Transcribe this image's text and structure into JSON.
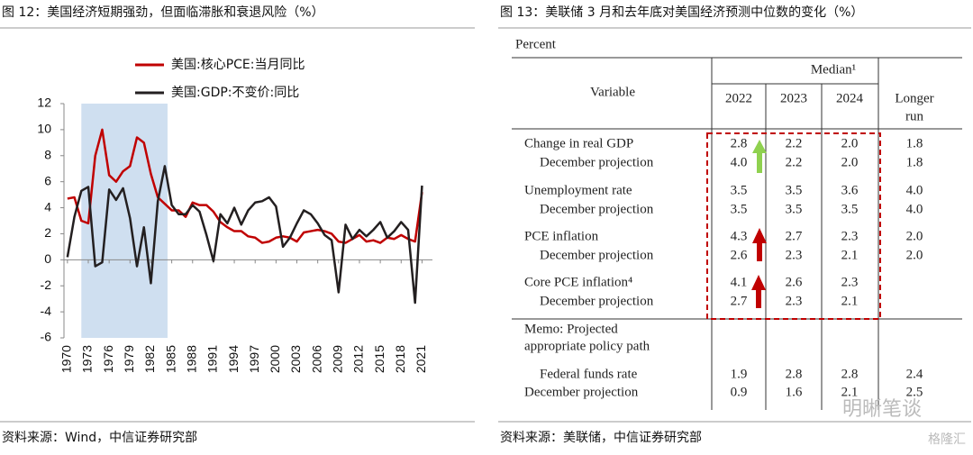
{
  "chart_data": {
    "type": "line",
    "title": "图 12：美国经济短期强劲，但面临滞胀和衰退风险（%）",
    "source": "资料来源：Wind，中信证券研究部",
    "x": [
      1970,
      1971,
      1972,
      1973,
      1974,
      1975,
      1976,
      1977,
      1978,
      1979,
      1980,
      1981,
      1982,
      1983,
      1984,
      1985,
      1986,
      1987,
      1988,
      1989,
      1990,
      1991,
      1992,
      1993,
      1994,
      1995,
      1996,
      1997,
      1998,
      1999,
      2000,
      2001,
      2002,
      2003,
      2004,
      2005,
      2006,
      2007,
      2008,
      2009,
      2010,
      2011,
      2012,
      2013,
      2014,
      2015,
      2016,
      2017,
      2018,
      2019,
      2020,
      2021
    ],
    "series": [
      {
        "name": "美国:核心PCE:当月同比",
        "color": "#c00000",
        "values": [
          4.7,
          4.8,
          3.0,
          2.8,
          8.0,
          10.0,
          6.5,
          6.0,
          6.8,
          7.2,
          9.4,
          9.0,
          6.6,
          4.8,
          4.3,
          3.8,
          3.8,
          3.3,
          4.4,
          4.2,
          4.2,
          3.7,
          2.9,
          2.5,
          2.2,
          2.2,
          1.8,
          1.7,
          1.3,
          1.4,
          1.7,
          1.8,
          1.7,
          1.4,
          2.1,
          2.2,
          2.3,
          2.2,
          2.0,
          1.4,
          1.3,
          1.6,
          1.9,
          1.4,
          1.5,
          1.3,
          1.7,
          1.6,
          1.9,
          1.6,
          1.4,
          5.2
        ]
      },
      {
        "name": "美国:GDP:不变价:同比",
        "color": "#231f20",
        "values": [
          0.2,
          3.3,
          5.3,
          5.6,
          -0.5,
          -0.2,
          5.4,
          4.6,
          5.5,
          3.2,
          -0.5,
          2.5,
          -1.8,
          4.5,
          7.2,
          4.2,
          3.5,
          3.5,
          4.2,
          3.7,
          1.9,
          -0.1,
          3.5,
          2.8,
          4.0,
          2.7,
          3.8,
          4.4,
          4.5,
          4.8,
          4.1,
          1.0,
          1.7,
          2.8,
          3.8,
          3.5,
          2.8,
          1.9,
          1.5,
          -2.5,
          2.7,
          1.6,
          2.3,
          1.8,
          2.3,
          2.9,
          1.7,
          2.2,
          2.9,
          2.3,
          -3.3,
          5.7
        ]
      }
    ],
    "xlim": [
      1969.5,
      2022.5
    ],
    "xticks": [
      1970,
      1973,
      1976,
      1979,
      1982,
      1985,
      1988,
      1991,
      1994,
      1997,
      2000,
      2003,
      2006,
      2009,
      2012,
      2015,
      2018,
      2021
    ],
    "ylim": [
      -6,
      12
    ],
    "yticks": [
      -6,
      -4,
      -2,
      0,
      2,
      4,
      6,
      8,
      10,
      12
    ],
    "highlight_x": [
      1972,
      1984.4
    ],
    "highlight_color": "#cfdff0"
  },
  "table_panel": {
    "title": "图 13：美联储 3 月和去年底对美国经济预测中位数的变化（%）",
    "caption": "Percent",
    "header": {
      "variable": "Variable",
      "median": "Median¹",
      "columns": [
        "2022",
        "2023",
        "2024"
      ],
      "longer_run": [
        "Longer",
        "run"
      ]
    },
    "rows": [
      {
        "label": "Change in real GDP",
        "values": [
          "2.8",
          "2.2",
          "2.0",
          "1.8"
        ]
      },
      {
        "label": "December projection",
        "values": [
          "4.0",
          "2.2",
          "2.0",
          "1.8"
        ]
      },
      {
        "label": "Unemployment rate",
        "values": [
          "3.5",
          "3.5",
          "3.6",
          "4.0"
        ]
      },
      {
        "label": "December projection",
        "values": [
          "3.5",
          "3.5",
          "3.5",
          "4.0"
        ]
      },
      {
        "label": "PCE inflation",
        "values": [
          "4.3",
          "2.7",
          "2.3",
          "2.0"
        ]
      },
      {
        "label": "December projection",
        "values": [
          "2.6",
          "2.3",
          "2.1",
          "2.0"
        ]
      },
      {
        "label": "Core PCE inflation⁴",
        "values": [
          "4.1",
          "2.6",
          "2.3",
          null
        ]
      },
      {
        "label": "December projection",
        "values": [
          "2.7",
          "2.3",
          "2.1",
          null
        ]
      },
      {
        "label": [
          "Memo: Projected",
          "appropriate policy path"
        ],
        "values": [
          null,
          null,
          null,
          null
        ]
      },
      {
        "label": "Federal funds rate",
        "values": [
          "1.9",
          "2.8",
          "2.8",
          "2.4"
        ]
      },
      {
        "label": "December projection",
        "values": [
          "0.9",
          "1.6",
          "2.1",
          "2.5"
        ]
      }
    ],
    "source": "资料来源：美联储，中信证券研究部"
  },
  "watermark": {
    "text": "明晰笔谈",
    "brand": "格隆汇"
  }
}
